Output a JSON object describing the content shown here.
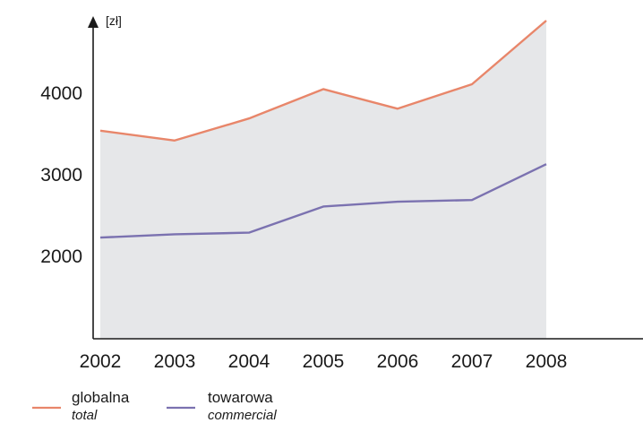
{
  "chart_data": {
    "type": "line",
    "title": "",
    "xlabel": "",
    "ylabel": "[zł]",
    "x": [
      "2002",
      "2003",
      "2004",
      "2005",
      "2006",
      "2007",
      "2008"
    ],
    "y_ticks": [
      2000,
      3000,
      4000
    ],
    "ylim": [
      1000,
      5000
    ],
    "grid": false,
    "legend_position": "bottom-left",
    "fill_under_top_series": true,
    "series": [
      {
        "name": "globalna",
        "subname": "total",
        "color": "#e8866a",
        "values": [
          3540,
          3420,
          3690,
          4050,
          3810,
          4110,
          4890
        ]
      },
      {
        "name": "towarowa",
        "subname": "commercial",
        "color": "#7b72b0",
        "values": [
          2230,
          2270,
          2290,
          2610,
          2670,
          2690,
          3130
        ]
      }
    ],
    "area_color": "#e6e7e9",
    "axis_color": "#1a1a1a"
  }
}
